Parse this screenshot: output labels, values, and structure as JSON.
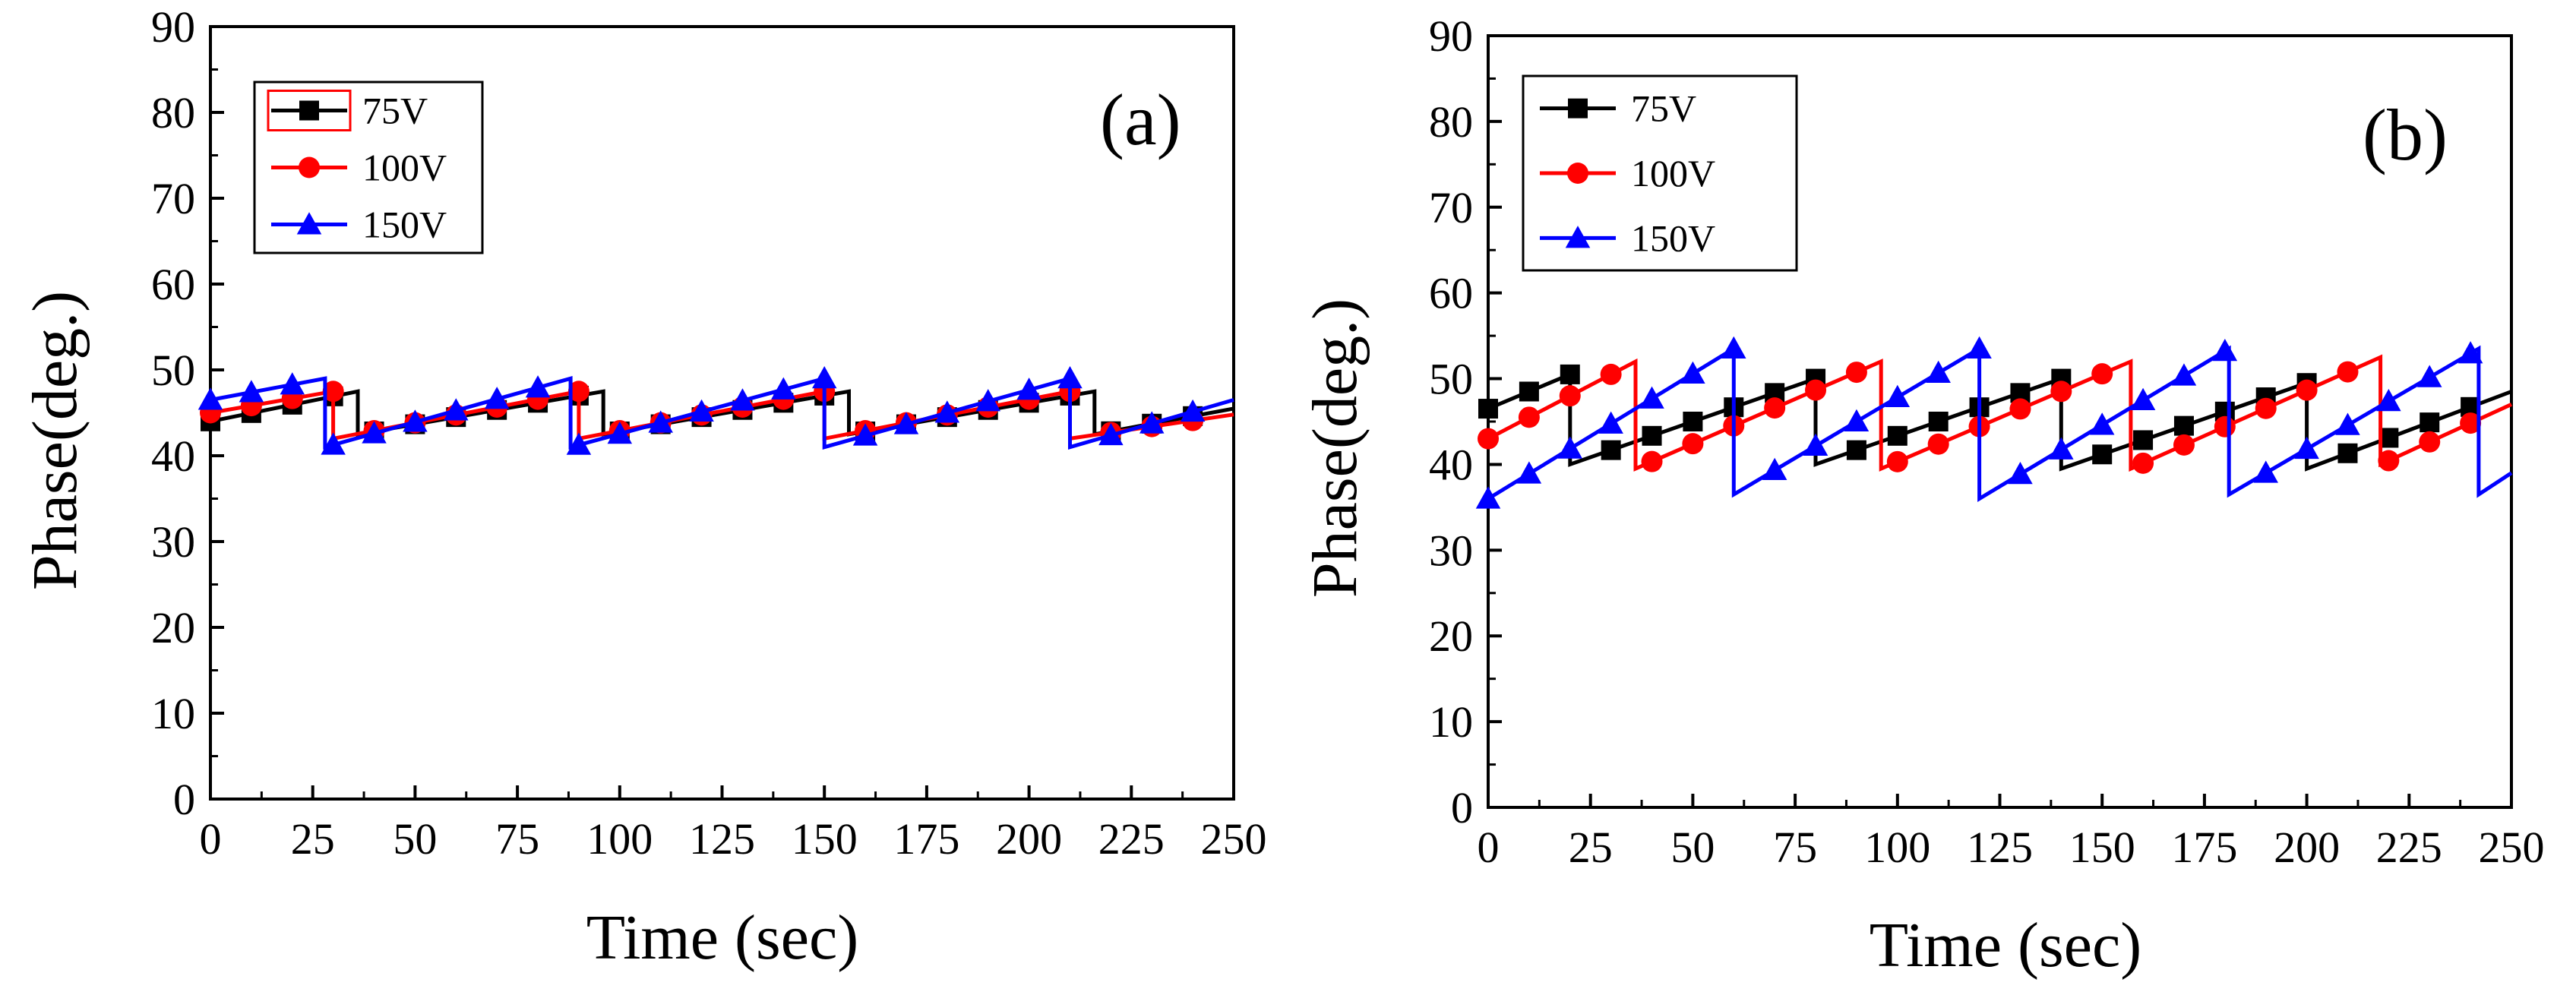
{
  "chart_data": [
    {
      "type": "line",
      "panel_label": "(a)",
      "xlabel": "Time (sec)",
      "ylabel": "Phase(deg.)",
      "xlim": [
        0,
        250
      ],
      "ylim": [
        0,
        90
      ],
      "xticks": [
        "0",
        "25",
        "50",
        "75",
        "100",
        "125",
        "150",
        "175",
        "200",
        "225",
        "250"
      ],
      "yticks": [
        "0",
        "10",
        "20",
        "30",
        "40",
        "50",
        "60",
        "70",
        "80",
        "90"
      ],
      "legend_position": "top-left",
      "series": [
        {
          "name": "75V",
          "color": "#000000",
          "marker": "square",
          "x": [
            0,
            36,
            36,
            96,
            96,
            156,
            156,
            216,
            216,
            250
          ],
          "y": [
            44,
            47.5,
            42.5,
            47.5,
            42.5,
            47.5,
            42.5,
            47.5,
            42.5,
            45.5
          ],
          "marker_x": [
            0,
            10,
            20,
            30,
            40,
            50,
            60,
            70,
            80,
            90,
            100,
            110,
            120,
            130,
            140,
            150,
            160,
            170,
            180,
            190,
            200,
            210,
            220,
            230,
            240
          ]
        },
        {
          "name": "100V",
          "color": "#ff0000",
          "marker": "circle",
          "x": [
            0,
            30,
            30,
            90,
            90,
            150,
            150,
            210,
            210,
            250
          ],
          "y": [
            45,
            47.5,
            42,
            47.5,
            42,
            47.5,
            42,
            47.5,
            42,
            44.8
          ],
          "marker_x": [
            0,
            10,
            20,
            30,
            40,
            50,
            60,
            70,
            80,
            90,
            100,
            110,
            120,
            130,
            140,
            150,
            160,
            170,
            180,
            190,
            200,
            210,
            220,
            230,
            240
          ]
        },
        {
          "name": "150V",
          "color": "#0000ff",
          "marker": "triangle",
          "x": [
            0,
            28,
            28,
            88,
            88,
            150,
            150,
            210,
            210,
            250
          ],
          "y": [
            46.5,
            49,
            41,
            49,
            41,
            49,
            41,
            49,
            41,
            46.5
          ],
          "marker_x": [
            0,
            10,
            20,
            30,
            40,
            50,
            60,
            70,
            80,
            90,
            100,
            110,
            120,
            130,
            140,
            150,
            160,
            170,
            180,
            190,
            200,
            210,
            220,
            230,
            240
          ]
        }
      ]
    },
    {
      "type": "line",
      "panel_label": "(b)",
      "xlabel": "Time (sec)",
      "ylabel": "Phase(deg.)",
      "xlim": [
        0,
        250
      ],
      "ylim": [
        0,
        90
      ],
      "xticks": [
        "0",
        "25",
        "50",
        "75",
        "100",
        "125",
        "150",
        "175",
        "200",
        "225",
        "250"
      ],
      "yticks": [
        "0",
        "10",
        "20",
        "30",
        "40",
        "50",
        "60",
        "70",
        "80",
        "90"
      ],
      "legend_position": "top-left",
      "series": [
        {
          "name": "75V",
          "color": "#000000",
          "marker": "square",
          "x": [
            0,
            20,
            20,
            80,
            80,
            140,
            140,
            200,
            200,
            250
          ],
          "y": [
            46.5,
            50.5,
            40,
            50,
            40,
            50,
            39.5,
            49.5,
            39.5,
            48.5
          ],
          "marker_x": [
            0,
            10,
            20,
            30,
            40,
            50,
            60,
            70,
            80,
            90,
            100,
            110,
            120,
            130,
            140,
            150,
            160,
            170,
            180,
            190,
            200,
            210,
            220,
            230,
            240
          ]
        },
        {
          "name": "100V",
          "color": "#ff0000",
          "marker": "circle",
          "x": [
            0,
            36,
            36,
            96,
            96,
            157,
            157,
            218,
            218,
            250
          ],
          "y": [
            43,
            52,
            39.5,
            52,
            39.5,
            52,
            39.5,
            52.5,
            40,
            47
          ],
          "marker_x": [
            0,
            10,
            20,
            30,
            40,
            50,
            60,
            70,
            80,
            90,
            100,
            110,
            120,
            130,
            140,
            150,
            160,
            170,
            180,
            190,
            200,
            210,
            220,
            230,
            240
          ]
        },
        {
          "name": "150V",
          "color": "#0000ff",
          "marker": "triangle",
          "x": [
            0,
            60,
            60,
            120,
            120,
            181,
            181,
            242,
            242,
            250
          ],
          "y": [
            36,
            53.5,
            36.5,
            53.5,
            36,
            53.5,
            36.5,
            53.5,
            36.5,
            39
          ],
          "marker_x": [
            0,
            10,
            20,
            30,
            40,
            50,
            60,
            70,
            80,
            90,
            100,
            110,
            120,
            130,
            140,
            150,
            160,
            170,
            180,
            190,
            200,
            210,
            220,
            230,
            240
          ]
        }
      ]
    }
  ]
}
